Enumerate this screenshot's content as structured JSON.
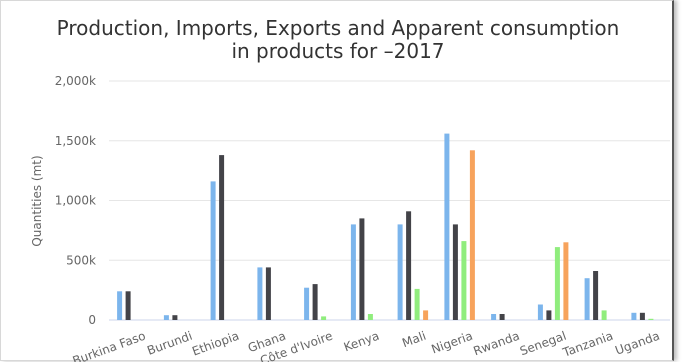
{
  "chart_data": {
    "type": "bar",
    "title_line1": "Production, Imports, Exports and Apparent consumption",
    "title_line2": "in products for –2017",
    "ylabel": "Quantities (mt)",
    "xlabel": "",
    "ylim": [
      0,
      2000000
    ],
    "yticks": [
      0,
      500000,
      1000000,
      1500000,
      2000000
    ],
    "ytick_labels": [
      "0",
      "500k",
      "1,000k",
      "1,500k",
      "2,000k"
    ],
    "grid": true,
    "categories": [
      "Burkina Faso",
      "Burundi",
      "Ethiopia",
      "Ghana",
      "Côte d'Ivoire",
      "Kenya",
      "Mali",
      "Nigeria",
      "Rwanda",
      "Senegal",
      "Tanzania",
      "Uganda"
    ],
    "series": [
      {
        "color": "#7cb5ec",
        "values": [
          240000,
          40000,
          1160000,
          440000,
          270000,
          800000,
          800000,
          1560000,
          50000,
          130000,
          350000,
          60000
        ]
      },
      {
        "color": "#434348",
        "values": [
          240000,
          40000,
          1380000,
          440000,
          300000,
          850000,
          910000,
          800000,
          50000,
          80000,
          410000,
          60000
        ]
      },
      {
        "color": "#90ed7d",
        "values": [
          0,
          0,
          0,
          0,
          30000,
          50000,
          260000,
          660000,
          0,
          610000,
          80000,
          10000
        ]
      },
      {
        "color": "#f7a35c",
        "values": [
          0,
          0,
          0,
          0,
          0,
          0,
          80000,
          1420000,
          0,
          650000,
          0,
          0
        ]
      }
    ]
  }
}
